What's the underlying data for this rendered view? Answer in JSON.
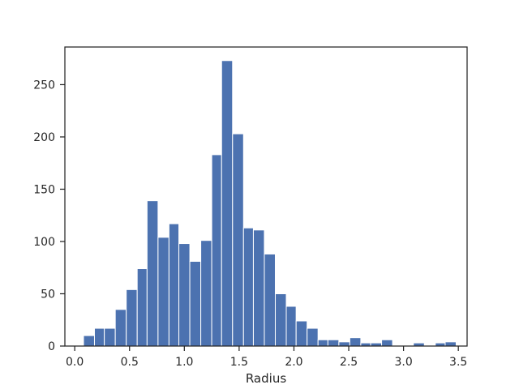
{
  "chart_data": {
    "type": "bar",
    "subtype": "histogram",
    "xlabel": "Radius",
    "ylabel": "",
    "title": "",
    "xlim": [
      -0.09,
      3.58
    ],
    "ylim": [
      0,
      286
    ],
    "grid": false,
    "bar_color": "#4c72b0",
    "bar_edge_color": "#ffffff",
    "x_ticks": [
      {
        "value": 0.0,
        "label": "0.0"
      },
      {
        "value": 0.5,
        "label": "0.5"
      },
      {
        "value": 1.0,
        "label": "1.0"
      },
      {
        "value": 1.5,
        "label": "1.5"
      },
      {
        "value": 2.0,
        "label": "2.0"
      },
      {
        "value": 2.5,
        "label": "2.5"
      },
      {
        "value": 3.0,
        "label": "3.0"
      },
      {
        "value": 3.5,
        "label": "3.5"
      }
    ],
    "y_ticks": [
      {
        "value": 0,
        "label": "0"
      },
      {
        "value": 50,
        "label": "50"
      },
      {
        "value": 100,
        "label": "100"
      },
      {
        "value": 150,
        "label": "150"
      },
      {
        "value": 200,
        "label": "200"
      },
      {
        "value": 250,
        "label": "250"
      }
    ],
    "bins": [
      {
        "x0": 0.08,
        "x1": 0.18,
        "count": 10
      },
      {
        "x0": 0.18,
        "x1": 0.27,
        "count": 17
      },
      {
        "x0": 0.27,
        "x1": 0.37,
        "count": 17
      },
      {
        "x0": 0.37,
        "x1": 0.47,
        "count": 35
      },
      {
        "x0": 0.47,
        "x1": 0.57,
        "count": 54
      },
      {
        "x0": 0.57,
        "x1": 0.66,
        "count": 74
      },
      {
        "x0": 0.66,
        "x1": 0.76,
        "count": 139
      },
      {
        "x0": 0.76,
        "x1": 0.86,
        "count": 104
      },
      {
        "x0": 0.86,
        "x1": 0.95,
        "count": 117
      },
      {
        "x0": 0.95,
        "x1": 1.05,
        "count": 98
      },
      {
        "x0": 1.05,
        "x1": 1.15,
        "count": 81
      },
      {
        "x0": 1.15,
        "x1": 1.25,
        "count": 101
      },
      {
        "x0": 1.25,
        "x1": 1.34,
        "count": 183
      },
      {
        "x0": 1.34,
        "x1": 1.44,
        "count": 273
      },
      {
        "x0": 1.44,
        "x1": 1.54,
        "count": 203
      },
      {
        "x0": 1.54,
        "x1": 1.63,
        "count": 113
      },
      {
        "x0": 1.63,
        "x1": 1.73,
        "count": 111
      },
      {
        "x0": 1.73,
        "x1": 1.83,
        "count": 88
      },
      {
        "x0": 1.83,
        "x1": 1.93,
        "count": 50
      },
      {
        "x0": 1.93,
        "x1": 2.02,
        "count": 38
      },
      {
        "x0": 2.02,
        "x1": 2.12,
        "count": 24
      },
      {
        "x0": 2.12,
        "x1": 2.22,
        "count": 17
      },
      {
        "x0": 2.22,
        "x1": 2.31,
        "count": 6
      },
      {
        "x0": 2.31,
        "x1": 2.41,
        "count": 6
      },
      {
        "x0": 2.41,
        "x1": 2.51,
        "count": 4
      },
      {
        "x0": 2.51,
        "x1": 2.61,
        "count": 8
      },
      {
        "x0": 2.61,
        "x1": 2.7,
        "count": 3
      },
      {
        "x0": 2.7,
        "x1": 2.8,
        "count": 3
      },
      {
        "x0": 2.8,
        "x1": 2.9,
        "count": 6
      },
      {
        "x0": 2.9,
        "x1": 2.99,
        "count": 0
      },
      {
        "x0": 2.99,
        "x1": 3.09,
        "count": 0
      },
      {
        "x0": 3.09,
        "x1": 3.19,
        "count": 3
      },
      {
        "x0": 3.19,
        "x1": 3.29,
        "count": 0
      },
      {
        "x0": 3.29,
        "x1": 3.38,
        "count": 3
      },
      {
        "x0": 3.38,
        "x1": 3.48,
        "count": 4
      }
    ]
  }
}
